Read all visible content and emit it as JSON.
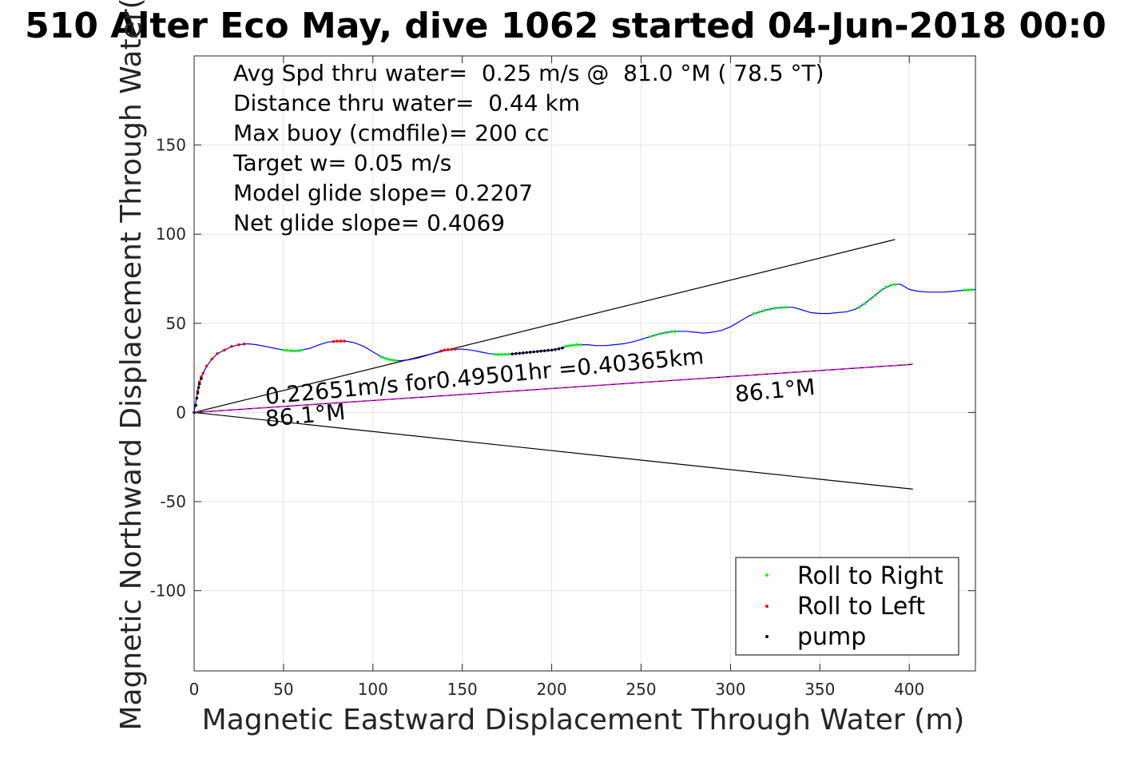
{
  "chart_data": {
    "type": "scatter",
    "title": "510 Alter Eco May, dive 1062 started 04-Jun-2018 00:0",
    "xlabel": "Magnetic Eastward Displacement Through Water (m)",
    "ylabel": "Magnetic Northward Displacement Through Water(",
    "xlim": [
      0,
      437
    ],
    "ylim": [
      -145,
      200
    ],
    "xticks": [
      0,
      50,
      100,
      150,
      200,
      250,
      300,
      350,
      400
    ],
    "yticks": [
      -100,
      -50,
      0,
      50,
      100,
      150
    ],
    "grid": true,
    "legend": {
      "position": "bottom-right",
      "entries": [
        {
          "label": "Roll to Right",
          "color": "#00ff00"
        },
        {
          "label": "Roll to Left",
          "color": "#ff0000"
        },
        {
          "label": "pump",
          "color": "#000000"
        }
      ]
    },
    "info_lines": [
      "Avg Spd thru water=  0.25 m/s @  81.0 °M ( 78.5 °T)",
      "Distance thru water=  0.44 km",
      "Max buoy (cmdfile)= 200 cc",
      "Target w= 0.05 m/s",
      "Model glide slope= 0.2207",
      "Net glide slope= 0.4069"
    ],
    "annotations": {
      "speed_text": "0.22651m/s for0.49501hr =0.40365km",
      "heading_start": "86.1°M",
      "heading_end": "86.1°M"
    },
    "track": {
      "color": "#0000ff",
      "points": [
        [
          0,
          0
        ],
        [
          1,
          6
        ],
        [
          2,
          12
        ],
        [
          3,
          17
        ],
        [
          5,
          22
        ],
        [
          7,
          26
        ],
        [
          10,
          30
        ],
        [
          13,
          33
        ],
        [
          17,
          35
        ],
        [
          21,
          37
        ],
        [
          25,
          38
        ],
        [
          30,
          38.5
        ],
        [
          35,
          38
        ],
        [
          40,
          37
        ],
        [
          45,
          36
        ],
        [
          50,
          35
        ],
        [
          55,
          34.5
        ],
        [
          60,
          35
        ],
        [
          65,
          36
        ],
        [
          70,
          38
        ],
        [
          75,
          39.5
        ],
        [
          80,
          40
        ],
        [
          85,
          40
        ],
        [
          90,
          39
        ],
        [
          95,
          37
        ],
        [
          100,
          34
        ],
        [
          105,
          31
        ],
        [
          110,
          29.5
        ],
        [
          115,
          29
        ],
        [
          120,
          29.5
        ],
        [
          125,
          30.5
        ],
        [
          130,
          32
        ],
        [
          135,
          33.5
        ],
        [
          140,
          35
        ],
        [
          145,
          35.5
        ],
        [
          150,
          35.5
        ],
        [
          155,
          35
        ],
        [
          160,
          34
        ],
        [
          165,
          33
        ],
        [
          170,
          32.5
        ],
        [
          175,
          32.5
        ],
        [
          180,
          33
        ],
        [
          185,
          33.5
        ],
        [
          190,
          34
        ],
        [
          195,
          34.5
        ],
        [
          200,
          35
        ],
        [
          205,
          36
        ],
        [
          210,
          37.5
        ],
        [
          215,
          38
        ],
        [
          220,
          38
        ],
        [
          225,
          37.5
        ],
        [
          230,
          37.5
        ],
        [
          235,
          38
        ],
        [
          240,
          38.5
        ],
        [
          245,
          39.5
        ],
        [
          250,
          41
        ],
        [
          255,
          42.5
        ],
        [
          260,
          44
        ],
        [
          265,
          45
        ],
        [
          270,
          45.5
        ],
        [
          275,
          45.5
        ],
        [
          280,
          45
        ],
        [
          285,
          44.5
        ],
        [
          290,
          45
        ],
        [
          295,
          46
        ],
        [
          300,
          48
        ],
        [
          305,
          51
        ],
        [
          310,
          54
        ],
        [
          315,
          56
        ],
        [
          320,
          57.5
        ],
        [
          325,
          58.5
        ],
        [
          330,
          59
        ],
        [
          335,
          59
        ],
        [
          340,
          57.5
        ],
        [
          345,
          56
        ],
        [
          350,
          55.5
        ],
        [
          355,
          55.5
        ],
        [
          360,
          56
        ],
        [
          365,
          56.5
        ],
        [
          370,
          58
        ],
        [
          375,
          61
        ],
        [
          380,
          65
        ],
        [
          385,
          69
        ],
        [
          390,
          71.5
        ],
        [
          395,
          72
        ],
        [
          400,
          69
        ],
        [
          405,
          68
        ],
        [
          410,
          67.5
        ],
        [
          415,
          67.5
        ],
        [
          420,
          67.5
        ],
        [
          425,
          68
        ],
        [
          430,
          68.5
        ],
        [
          437,
          69
        ]
      ]
    },
    "roll_right_points": [
      [
        50,
        35
      ],
      [
        52,
        34.8
      ],
      [
        54,
        34.6
      ],
      [
        56,
        34.5
      ],
      [
        58,
        34.6
      ],
      [
        60,
        35
      ],
      [
        105,
        31
      ],
      [
        107,
        30.3
      ],
      [
        109,
        29.7
      ],
      [
        111,
        29.3
      ],
      [
        113,
        29.1
      ],
      [
        168,
        32.6
      ],
      [
        170,
        32.5
      ],
      [
        172,
        32.5
      ],
      [
        174,
        32.6
      ],
      [
        176,
        32.7
      ],
      [
        208,
        37.2
      ],
      [
        210,
        37.5
      ],
      [
        212,
        37.8
      ],
      [
        214,
        38
      ],
      [
        216,
        38
      ],
      [
        255,
        42.5
      ],
      [
        258,
        43.4
      ],
      [
        261,
        44.2
      ],
      [
        264,
        44.8
      ],
      [
        267,
        45.3
      ],
      [
        269,
        45.5
      ],
      [
        313,
        55.4
      ],
      [
        316,
        56.3
      ],
      [
        319,
        57.2
      ],
      [
        322,
        57.9
      ],
      [
        325,
        58.5
      ],
      [
        328,
        58.8
      ],
      [
        331,
        59
      ],
      [
        372,
        59
      ],
      [
        375,
        61
      ],
      [
        378,
        63.4
      ],
      [
        381,
        65.8
      ],
      [
        384,
        68.2
      ],
      [
        387,
        70.4
      ],
      [
        390,
        71.5
      ],
      [
        392,
        71.8
      ],
      [
        431,
        68.6
      ],
      [
        433,
        68.7
      ],
      [
        435,
        68.8
      ]
    ],
    "roll_left_points": [
      [
        2,
        12
      ],
      [
        3,
        17
      ],
      [
        4,
        20
      ],
      [
        5,
        22
      ],
      [
        7,
        26
      ],
      [
        10,
        30
      ],
      [
        13,
        33
      ],
      [
        17,
        35
      ],
      [
        21,
        37
      ],
      [
        25,
        38
      ],
      [
        28,
        38.4
      ],
      [
        78,
        39.8
      ],
      [
        80,
        40
      ],
      [
        82,
        40
      ],
      [
        84,
        40
      ],
      [
        138,
        34.4
      ],
      [
        140,
        35
      ],
      [
        142,
        35.2
      ],
      [
        144,
        35.4
      ],
      [
        146,
        35.5
      ]
    ],
    "pump_points": [
      [
        0,
        0
      ],
      [
        1,
        4
      ],
      [
        1.5,
        8
      ],
      [
        2,
        11
      ],
      [
        2.5,
        14
      ],
      [
        3,
        16
      ],
      [
        4,
        19
      ],
      [
        178,
        32.8
      ],
      [
        180,
        33
      ],
      [
        182,
        33.2
      ],
      [
        184,
        33.4
      ],
      [
        186,
        33.6
      ],
      [
        188,
        33.8
      ],
      [
        190,
        34
      ],
      [
        192,
        34.2
      ],
      [
        194,
        34.4
      ],
      [
        196,
        34.6
      ],
      [
        198,
        34.8
      ],
      [
        200,
        35
      ],
      [
        202,
        35.3
      ],
      [
        204,
        35.7
      ],
      [
        206,
        36.2
      ]
    ],
    "reference_lines": [
      {
        "color": "#000000",
        "x": [
          0,
          392
        ],
        "y": [
          0,
          97
        ]
      },
      {
        "color": "#000000",
        "x": [
          0,
          402
        ],
        "y": [
          0,
          -43
        ]
      },
      {
        "color": "#000000",
        "x": [
          0,
          402
        ],
        "y": [
          0,
          27
        ]
      },
      {
        "color": "#ff00ff",
        "x": [
          0,
          402
        ],
        "y": [
          0,
          27
        ],
        "dashed": true
      }
    ]
  }
}
